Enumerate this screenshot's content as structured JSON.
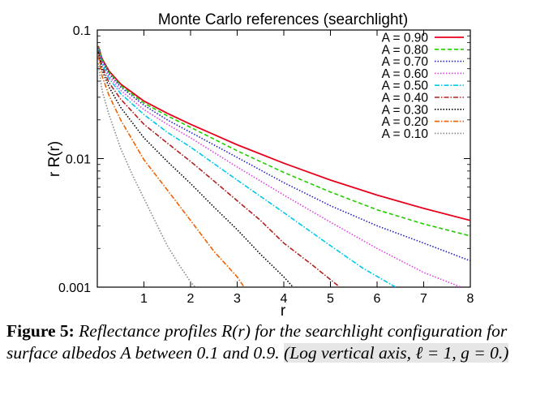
{
  "chart_data": {
    "type": "line",
    "title": "Monte Carlo references (searchlight)",
    "xlabel": "r",
    "ylabel": "r R(r)",
    "xlim": [
      0,
      8
    ],
    "ylim": [
      0.001,
      0.1
    ],
    "yscale": "log",
    "x_ticks": [
      "1",
      "2",
      "3",
      "4",
      "5",
      "6",
      "7",
      "8"
    ],
    "y_ticks": [
      "0.1",
      "0.01",
      "0.001"
    ],
    "grid": false,
    "legend_position": "top-right",
    "series": [
      {
        "name": "A = 0.90",
        "color": "#e8001c",
        "dash": "solid",
        "x": [
          0.02,
          0.1,
          0.25,
          0.5,
          1,
          1.5,
          2,
          3,
          4,
          5,
          6,
          7,
          8
        ],
        "y": [
          0.075,
          0.06,
          0.048,
          0.038,
          0.028,
          0.0225,
          0.0185,
          0.0128,
          0.0092,
          0.0068,
          0.0052,
          0.0041,
          0.0033
        ]
      },
      {
        "name": "A = 0.80",
        "color": "#22cc00",
        "dash": "dashed",
        "x": [
          0.02,
          0.1,
          0.25,
          0.5,
          1,
          1.5,
          2,
          3,
          4,
          5,
          6,
          7,
          8
        ],
        "y": [
          0.074,
          0.059,
          0.047,
          0.037,
          0.027,
          0.0215,
          0.0175,
          0.0115,
          0.0078,
          0.0055,
          0.004,
          0.0031,
          0.0025
        ]
      },
      {
        "name": "A = 0.70",
        "color": "#2020c0",
        "dash": "dotted",
        "x": [
          0.02,
          0.1,
          0.25,
          0.5,
          1,
          1.5,
          2,
          3,
          4,
          5,
          6,
          7,
          8
        ],
        "y": [
          0.073,
          0.058,
          0.046,
          0.036,
          0.026,
          0.02,
          0.016,
          0.0102,
          0.0065,
          0.0043,
          0.003,
          0.0022,
          0.0016
        ]
      },
      {
        "name": "A = 0.60",
        "color": "#e040e0",
        "dash": "dotted",
        "x": [
          0.02,
          0.1,
          0.25,
          0.5,
          1,
          1.5,
          2,
          3,
          4,
          5,
          6,
          7,
          7.8
        ],
        "y": [
          0.072,
          0.057,
          0.044,
          0.034,
          0.024,
          0.0185,
          0.0145,
          0.0086,
          0.0052,
          0.0032,
          0.002,
          0.0013,
          0.001
        ]
      },
      {
        "name": "A = 0.50",
        "color": "#00c8e8",
        "dash": "dashdot",
        "x": [
          0.02,
          0.1,
          0.25,
          0.5,
          1,
          1.5,
          2,
          3,
          4,
          5,
          5.7,
          6.4
        ],
        "y": [
          0.071,
          0.055,
          0.042,
          0.032,
          0.022,
          0.016,
          0.0123,
          0.0068,
          0.0038,
          0.0021,
          0.0014,
          0.001
        ]
      },
      {
        "name": "A = 0.40",
        "color": "#b02020",
        "dash": "dashdot",
        "x": [
          0.02,
          0.1,
          0.25,
          0.5,
          1,
          1.5,
          2,
          2.5,
          3,
          3.5,
          4,
          4.6,
          5.2
        ],
        "y": [
          0.069,
          0.052,
          0.039,
          0.029,
          0.0185,
          0.0132,
          0.0095,
          0.0067,
          0.0047,
          0.0033,
          0.0022,
          0.0015,
          0.001
        ]
      },
      {
        "name": "A = 0.30",
        "color": "#000000",
        "dash": "dotted",
        "x": [
          0.02,
          0.1,
          0.25,
          0.5,
          1,
          1.5,
          2,
          2.5,
          3,
          3.5,
          4,
          4.2
        ],
        "y": [
          0.067,
          0.049,
          0.036,
          0.025,
          0.0145,
          0.0095,
          0.0064,
          0.0042,
          0.0028,
          0.0018,
          0.0012,
          0.001
        ]
      },
      {
        "name": "A = 0.20",
        "color": "#f06000",
        "dash": "dashdot",
        "x": [
          0.02,
          0.1,
          0.25,
          0.5,
          1,
          1.5,
          2,
          2.5,
          3,
          3.15
        ],
        "y": [
          0.063,
          0.044,
          0.031,
          0.02,
          0.0098,
          0.0057,
          0.0033,
          0.0019,
          0.0012,
          0.001
        ]
      },
      {
        "name": "A = 0.10",
        "color": "#888888",
        "dash": "dotted",
        "x": [
          0.02,
          0.1,
          0.25,
          0.5,
          0.75,
          1,
          1.25,
          1.5,
          1.75,
          2,
          2.1
        ],
        "y": [
          0.055,
          0.034,
          0.022,
          0.012,
          0.0075,
          0.0049,
          0.0032,
          0.0021,
          0.0015,
          0.0011,
          0.001
        ]
      }
    ]
  },
  "caption": {
    "label": "Figure 5:",
    "text": "Reflectance profiles R(r) for the searchlight configuration for surface albedos A between 0.1 and 0.9.",
    "note": "(Log vertical axis, ℓ = 1, g = 0.)"
  }
}
